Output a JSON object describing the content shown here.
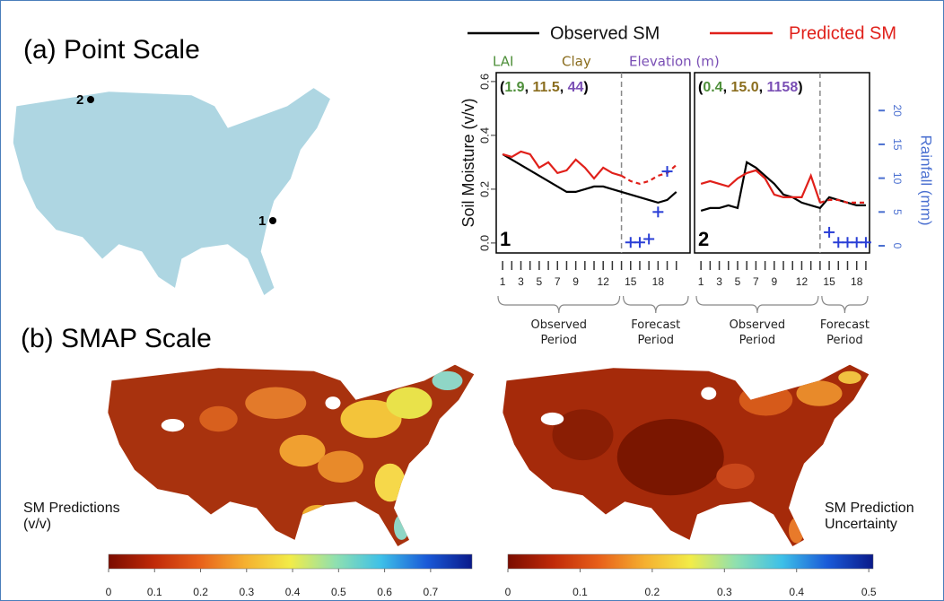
{
  "panel_a": {
    "title": "(a) Point Scale",
    "sites": [
      "1",
      "2"
    ]
  },
  "panel_b": {
    "title": "(b) SMAP Scale",
    "map_labels": [
      "SM Predictions (v/v)",
      "SM Prediction Uncertainty"
    ]
  },
  "attributes": {
    "names": [
      "LAI",
      "Clay",
      "Elevation (m)"
    ],
    "colors": [
      "#4e8f3a",
      "#8a6d1e",
      "#7a4fb5"
    ]
  },
  "chart_data": [
    {
      "type": "line",
      "site": "1",
      "x": [
        1,
        2,
        3,
        4,
        5,
        6,
        7,
        8,
        9,
        10,
        11,
        12,
        13,
        14,
        15,
        16,
        17,
        18,
        19,
        20
      ],
      "xlim": [
        0.3,
        21.5
      ],
      "xticks": [
        1,
        3,
        5,
        7,
        9,
        12,
        15,
        18
      ],
      "ylim": [
        -0.037,
        0.633
      ],
      "yticks": [
        {
          "value": 0,
          "label": "0.0"
        },
        0.2,
        0.4,
        0.6
      ],
      "ylabel": "Soil Moisture (v/v)",
      "y2lim": [
        -1.06,
        25.6
      ],
      "forecast_start": 14,
      "period_labels": [
        "Observed Period",
        "Forecast Period"
      ],
      "site_attributes": [
        1.9,
        11.5,
        44
      ],
      "series": [
        {
          "name": "Observed SM",
          "color": "#000000",
          "values": [
            0.33,
            0.31,
            0.29,
            0.27,
            0.25,
            0.23,
            0.21,
            0.19,
            0.19,
            0.2,
            0.21,
            0.21,
            0.2,
            0.19,
            0.18,
            0.17,
            0.16,
            0.15,
            0.16,
            0.19
          ]
        },
        {
          "name": "Predicted SM",
          "color": "#e0201a",
          "values": [
            0.33,
            0.32,
            0.34,
            0.33,
            0.28,
            0.3,
            0.26,
            0.27,
            0.31,
            0.28,
            0.24,
            0.28,
            0.26,
            0.25,
            0.23,
            0.22,
            0.23,
            0.25,
            0.26,
            0.29
          ]
        },
        {
          "color": "#2a3fd6",
          "axis": "y2",
          "marker": "+",
          "values": [
            null,
            null,
            null,
            null,
            null,
            null,
            null,
            null,
            null,
            null,
            null,
            null,
            null,
            null,
            0.5,
            0.5,
            1,
            5,
            11,
            null
          ]
        }
      ]
    },
    {
      "type": "line",
      "site": "2",
      "x": [
        1,
        2,
        3,
        4,
        5,
        6,
        7,
        8,
        9,
        10,
        11,
        12,
        13,
        14,
        15,
        16,
        17,
        18,
        19
      ],
      "xlim": [
        0.3,
        19.4
      ],
      "xticks": [
        1,
        3,
        5,
        7,
        9,
        12,
        15,
        18
      ],
      "ylim": [
        -0.037,
        0.633
      ],
      "y2label": "Rainfall (mm)",
      "y2lim": [
        -1.06,
        25.6
      ],
      "y2ticks": [
        0,
        5,
        10,
        15,
        20
      ],
      "y2color": "#4a6fd0",
      "forecast_start": 14,
      "period_labels": [
        "Observed Period",
        "Forecast Period"
      ],
      "site_attributes": [
        0.4,
        {
          "value": 15,
          "label": "15.0"
        },
        1158
      ],
      "series": [
        {
          "color": "#000000",
          "values": [
            0.12,
            0.13,
            0.13,
            0.14,
            0.13,
            0.3,
            0.28,
            0.25,
            0.22,
            0.18,
            0.17,
            0.15,
            0.14,
            0.13,
            0.17,
            0.16,
            0.15,
            0.14,
            0.14
          ]
        },
        {
          "color": "#e0201a",
          "values": [
            0.22,
            0.23,
            0.22,
            0.21,
            0.24,
            0.26,
            0.27,
            0.24,
            0.18,
            0.17,
            0.17,
            0.17,
            0.25,
            0.15,
            0.16,
            0.16,
            0.15,
            0.15,
            0.15
          ]
        },
        {
          "color": "#2a3fd6",
          "axis": "y2",
          "marker": "+",
          "values": [
            null,
            null,
            null,
            null,
            null,
            null,
            null,
            null,
            null,
            null,
            null,
            null,
            null,
            null,
            2,
            0.5,
            0.5,
            0.5,
            0.5
          ]
        }
      ]
    },
    {
      "type": "colorbar",
      "xlim": [
        0,
        0.79
      ],
      "xticks": [
        0,
        0.1,
        0.2,
        0.3,
        0.4,
        0.5,
        0.6,
        0.7
      ],
      "colors": [
        "#7a0c00",
        "#c02a08",
        "#e8601a",
        "#f5b030",
        "#f2ec48",
        "#8fe0b0",
        "#3ec0e8",
        "#1a5ad8",
        "#0a1a8a"
      ]
    },
    {
      "type": "colorbar",
      "xlim": [
        0,
        0.506
      ],
      "xticks": [
        0,
        0.1,
        0.2,
        0.3,
        0.4,
        0.5
      ],
      "colors": [
        "#7a0c00",
        "#c02a08",
        "#e8601a",
        "#f5b030",
        "#f2ec48",
        "#8fe0b0",
        "#3ec0e8",
        "#1a5ad8",
        "#0a1a8a"
      ]
    }
  ]
}
